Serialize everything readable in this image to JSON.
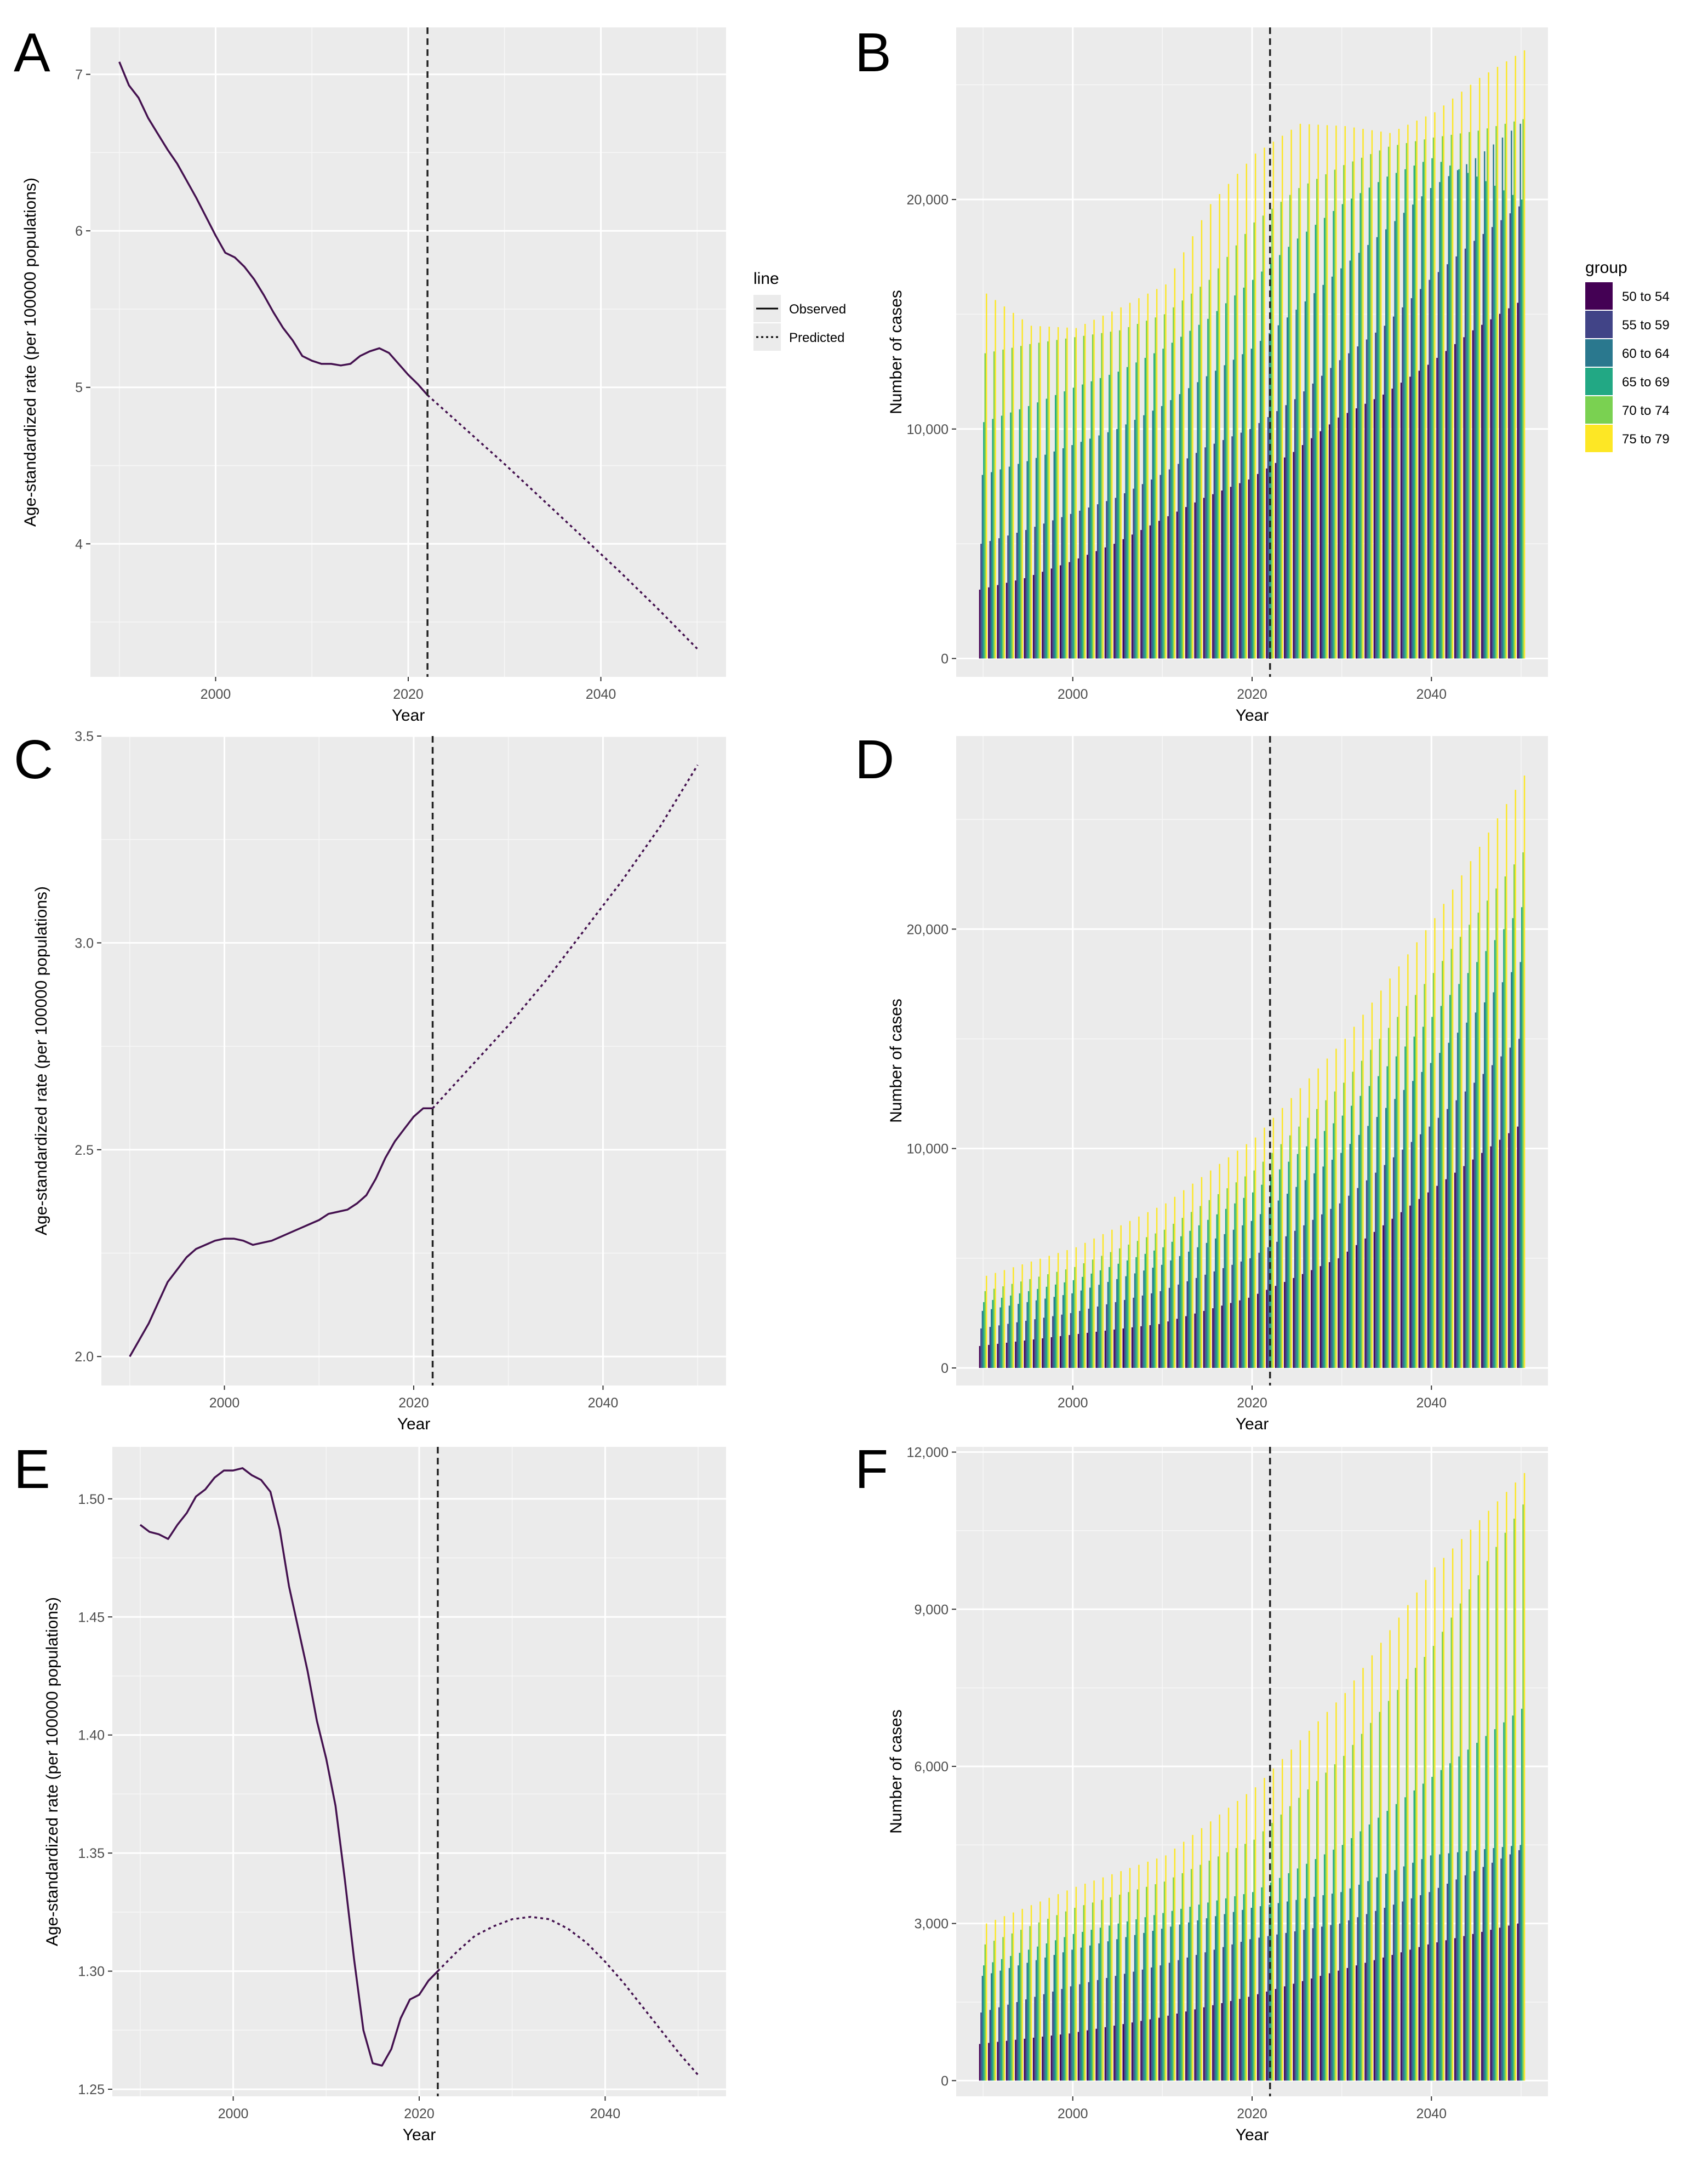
{
  "colors": {
    "panel_bg": "#ebebeb",
    "grid_major": "#ffffff",
    "line": "#44114f",
    "vline": "#222222",
    "groups": [
      "#440154",
      "#414487",
      "#2a788e",
      "#22a884",
      "#7ad151",
      "#fde725"
    ]
  },
  "chart_data": [
    {
      "panel": "A",
      "type": "line",
      "xlabel": "Year",
      "ylabel": "Age-standardized rate (per 100000 populations)",
      "xlim": [
        1987,
        2053
      ],
      "ylim": [
        3.15,
        7.3
      ],
      "x_ticks": [
        2000,
        2020,
        2040
      ],
      "y_ticks": [
        4,
        5,
        6,
        7
      ],
      "y_tick_labels": [
        "4",
        "5",
        "6",
        "7"
      ],
      "vline_x": 2022,
      "observed": {
        "x": [
          1990,
          1991,
          1992,
          1993,
          1994,
          1995,
          1996,
          1997,
          1998,
          1999,
          2000,
          2001,
          2002,
          2003,
          2004,
          2005,
          2006,
          2007,
          2008,
          2009,
          2010,
          2011,
          2012,
          2013,
          2014,
          2015,
          2016,
          2017,
          2018,
          2019,
          2020,
          2021,
          2022
        ],
        "y": [
          7.08,
          6.93,
          6.85,
          6.72,
          6.62,
          6.52,
          6.43,
          6.32,
          6.21,
          6.09,
          5.97,
          5.86,
          5.83,
          5.77,
          5.69,
          5.59,
          5.48,
          5.38,
          5.3,
          5.2,
          5.17,
          5.15,
          5.15,
          5.14,
          5.15,
          5.2,
          5.23,
          5.25,
          5.22,
          5.15,
          5.08,
          5.02,
          4.95
        ]
      },
      "predicted": {
        "x": [
          2022,
          2026,
          2030,
          2034,
          2038,
          2042,
          2046,
          2050
        ],
        "y": [
          4.95,
          4.73,
          4.51,
          4.28,
          4.05,
          3.82,
          3.58,
          3.33
        ]
      },
      "legend": {
        "title": "line",
        "entries": [
          "Observed",
          "Predicted"
        ]
      }
    },
    {
      "panel": "B",
      "type": "bar",
      "stacked": true,
      "xlabel": "Year",
      "ylabel": "Number of cases",
      "x_start": 1990,
      "x_end": 2050,
      "xlim": [
        1987,
        2053
      ],
      "ylim": [
        -800,
        27500
      ],
      "x_ticks": [
        2000,
        2020,
        2040
      ],
      "y_ticks": [
        0,
        10000,
        20000
      ],
      "y_tick_labels": [
        "0",
        "10,000",
        "20,000"
      ],
      "vline_x": 2022,
      "groups": [
        "50 to 54",
        "55 to 59",
        "60 to 64",
        "65 to 69",
        "70 to 74",
        "75 to 79"
      ],
      "legend": {
        "title": "group"
      },
      "cumulative_anchors": {
        "x": [
          1990,
          1995,
          2000,
          2005,
          2010,
          2015,
          2020,
          2025,
          2030,
          2035,
          2040,
          2045,
          2050
        ],
        "levels": [
          [
            3000,
            3500,
            4200,
            5000,
            6000,
            7000,
            7800,
            9000,
            10500,
            11500,
            12800,
            14300,
            15500
          ],
          [
            5000,
            5600,
            6300,
            7000,
            8000,
            9200,
            10000,
            11300,
            13000,
            14500,
            16500,
            18200,
            19700
          ],
          [
            8000,
            8600,
            9300,
            10000,
            11000,
            12300,
            13500,
            15200,
            17000,
            18700,
            20500,
            21800,
            23300
          ],
          [
            10300,
            11000,
            11800,
            12500,
            13500,
            14800,
            16500,
            18300,
            19800,
            21000,
            21800,
            21000,
            20000
          ],
          [
            13300,
            13700,
            14000,
            14300,
            15000,
            16500,
            19000,
            20500,
            21500,
            22300,
            22700,
            23000,
            23500
          ],
          [
            15900,
            14500,
            14400,
            15300,
            16300,
            19800,
            22000,
            23300,
            23200,
            22900,
            23800,
            25300,
            26500
          ]
        ]
      }
    },
    {
      "panel": "C",
      "type": "line",
      "xlabel": "Year",
      "ylabel": "Age-standardized rate (per 100000 populations)",
      "xlim": [
        1987,
        2053
      ],
      "ylim": [
        1.93,
        3.5
      ],
      "x_ticks": [
        2000,
        2020,
        2040
      ],
      "y_ticks": [
        2.0,
        2.5,
        3.0,
        3.5
      ],
      "y_tick_labels": [
        "2.0",
        "2.5",
        "3.0",
        "3.5"
      ],
      "vline_x": 2022,
      "observed": {
        "x": [
          1990,
          1991,
          1992,
          1993,
          1994,
          1995,
          1996,
          1997,
          1998,
          1999,
          2000,
          2001,
          2002,
          2003,
          2004,
          2005,
          2006,
          2007,
          2008,
          2009,
          2010,
          2011,
          2012,
          2013,
          2014,
          2015,
          2016,
          2017,
          2018,
          2019,
          2020,
          2021,
          2022
        ],
        "y": [
          2.0,
          2.04,
          2.08,
          2.13,
          2.18,
          2.21,
          2.24,
          2.26,
          2.27,
          2.28,
          2.285,
          2.285,
          2.28,
          2.27,
          2.275,
          2.28,
          2.29,
          2.3,
          2.31,
          2.32,
          2.33,
          2.345,
          2.35,
          2.355,
          2.37,
          2.39,
          2.43,
          2.48,
          2.52,
          2.55,
          2.58,
          2.6,
          2.6
        ]
      },
      "predicted": {
        "x": [
          2022,
          2026,
          2030,
          2034,
          2038,
          2042,
          2046,
          2050
        ],
        "y": [
          2.6,
          2.7,
          2.8,
          2.91,
          3.03,
          3.15,
          3.28,
          3.43
        ]
      }
    },
    {
      "panel": "D",
      "type": "bar",
      "stacked": true,
      "xlabel": "Year",
      "ylabel": "Number of cases",
      "x_start": 1990,
      "x_end": 2050,
      "xlim": [
        1987,
        2053
      ],
      "ylim": [
        -800,
        28800
      ],
      "x_ticks": [
        2000,
        2020,
        2040
      ],
      "y_ticks": [
        0,
        10000,
        20000
      ],
      "y_tick_labels": [
        "0",
        "10,000",
        "20,000"
      ],
      "vline_x": 2022,
      "groups": [
        "50 to 54",
        "55 to 59",
        "60 to 64",
        "65 to 69",
        "70 to 74",
        "75 to 79"
      ],
      "cumulative_anchors": {
        "x": [
          1990,
          2000,
          2010,
          2020,
          2030,
          2040,
          2050
        ],
        "levels": [
          [
            1000,
            1500,
            2000,
            3200,
            5000,
            8000,
            11000
          ],
          [
            1800,
            2500,
            3500,
            5000,
            7500,
            11000,
            15000
          ],
          [
            2600,
            3400,
            4700,
            6700,
            9800,
            13900,
            18500
          ],
          [
            3000,
            4000,
            5500,
            8000,
            11500,
            16000,
            21000
          ],
          [
            3500,
            4600,
            6300,
            9000,
            13000,
            18000,
            23500
          ],
          [
            4200,
            5500,
            7500,
            10500,
            15000,
            20500,
            27000
          ]
        ]
      }
    },
    {
      "panel": "E",
      "type": "line",
      "xlabel": "Year",
      "ylabel": "Age-standardized rate (per 100000 populations)",
      "xlim": [
        1987,
        2053
      ],
      "ylim": [
        1.247,
        1.522
      ],
      "x_ticks": [
        2000,
        2020,
        2040
      ],
      "y_ticks": [
        1.25,
        1.3,
        1.35,
        1.4,
        1.45,
        1.5
      ],
      "y_tick_labels": [
        "1.25",
        "1.30",
        "1.35",
        "1.40",
        "1.45",
        "1.50"
      ],
      "vline_x": 2022,
      "observed": {
        "x": [
          1990,
          1991,
          1992,
          1993,
          1994,
          1995,
          1996,
          1997,
          1998,
          1999,
          2000,
          2001,
          2002,
          2003,
          2004,
          2005,
          2006,
          2007,
          2008,
          2009,
          2010,
          2011,
          2012,
          2013,
          2014,
          2015,
          2016,
          2017,
          2018,
          2019,
          2020,
          2021,
          2022
        ],
        "y": [
          1.489,
          1.486,
          1.485,
          1.483,
          1.489,
          1.494,
          1.501,
          1.504,
          1.509,
          1.512,
          1.512,
          1.513,
          1.51,
          1.508,
          1.503,
          1.487,
          1.463,
          1.445,
          1.427,
          1.406,
          1.39,
          1.37,
          1.339,
          1.305,
          1.275,
          1.261,
          1.26,
          1.267,
          1.28,
          1.288,
          1.29,
          1.296,
          1.3
        ]
      },
      "predicted": {
        "x": [
          2022,
          2024,
          2026,
          2028,
          2030,
          2032,
          2034,
          2036,
          2038,
          2040,
          2042,
          2044,
          2046,
          2048,
          2050
        ],
        "y": [
          1.3,
          1.308,
          1.315,
          1.319,
          1.322,
          1.323,
          1.322,
          1.318,
          1.312,
          1.304,
          1.295,
          1.285,
          1.275,
          1.265,
          1.256
        ]
      }
    },
    {
      "panel": "F",
      "type": "bar",
      "stacked": true,
      "xlabel": "Year",
      "ylabel": "Number of cases",
      "x_start": 1990,
      "x_end": 2050,
      "xlim": [
        1987,
        2053
      ],
      "ylim": [
        -300,
        12100
      ],
      "x_ticks": [
        2000,
        2020,
        2040
      ],
      "y_ticks": [
        0,
        3000,
        6000,
        9000,
        12000
      ],
      "y_tick_labels": [
        "0",
        "3,000",
        "6,000",
        "9,000",
        "12,000"
      ],
      "vline_x": 2022,
      "groups": [
        "50 to 54",
        "55 to 59",
        "60 to 64",
        "65 to 69",
        "70 to 74",
        "75 to 79"
      ],
      "cumulative_anchors": {
        "x": [
          1990,
          2000,
          2010,
          2020,
          2030,
          2040,
          2050
        ],
        "levels": [
          [
            700,
            900,
            1200,
            1600,
            2100,
            2600,
            3000
          ],
          [
            1300,
            1800,
            2200,
            2700,
            3000,
            3600,
            4400
          ],
          [
            2000,
            2500,
            2900,
            3300,
            3600,
            4300,
            4500
          ],
          [
            2200,
            2800,
            3200,
            3600,
            4500,
            5800,
            7100
          ],
          [
            2600,
            3300,
            3800,
            4600,
            6200,
            8300,
            11000
          ],
          [
            3000,
            3700,
            4300,
            5600,
            7400,
            9800,
            11600
          ]
        ]
      }
    }
  ]
}
